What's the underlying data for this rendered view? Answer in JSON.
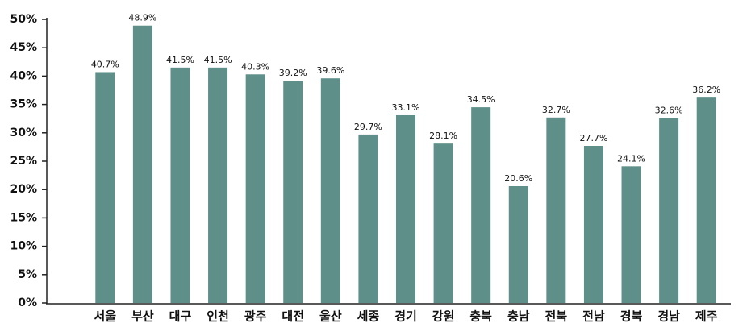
{
  "chart_data": {
    "type": "bar",
    "categories": [
      "서울",
      "부산",
      "대구",
      "인천",
      "광주",
      "대전",
      "울산",
      "세종",
      "경기",
      "강원",
      "충북",
      "충남",
      "전북",
      "전남",
      "경북",
      "경남",
      "제주"
    ],
    "values": [
      40.7,
      48.9,
      41.5,
      41.5,
      40.3,
      39.2,
      39.6,
      29.7,
      33.1,
      28.1,
      34.5,
      20.6,
      32.7,
      27.7,
      24.1,
      32.6,
      36.2
    ],
    "value_labels": [
      "40.7%",
      "48.9%",
      "41.5%",
      "41.5%",
      "40.3%",
      "39.2%",
      "39.6%",
      "29.7%",
      "33.1%",
      "28.1%",
      "34.5%",
      "20.6%",
      "32.7%",
      "27.7%",
      "24.1%",
      "32.6%",
      "36.2%"
    ],
    "color": "#5e8f88",
    "ylim": [
      0,
      50
    ],
    "yticks": [
      {
        "value": 0,
        "label": "0%"
      },
      {
        "value": 5,
        "label": "5%"
      },
      {
        "value": 10,
        "label": "10%"
      },
      {
        "value": 15,
        "label": "15%"
      },
      {
        "value": 20,
        "label": "20%"
      },
      {
        "value": 25,
        "label": "25%"
      },
      {
        "value": 30,
        "label": "30%"
      },
      {
        "value": 35,
        "label": "35%"
      },
      {
        "value": 40,
        "label": "40%"
      },
      {
        "value": 45,
        "label": "45%"
      },
      {
        "value": 50,
        "label": "50%"
      }
    ],
    "grid": false
  }
}
